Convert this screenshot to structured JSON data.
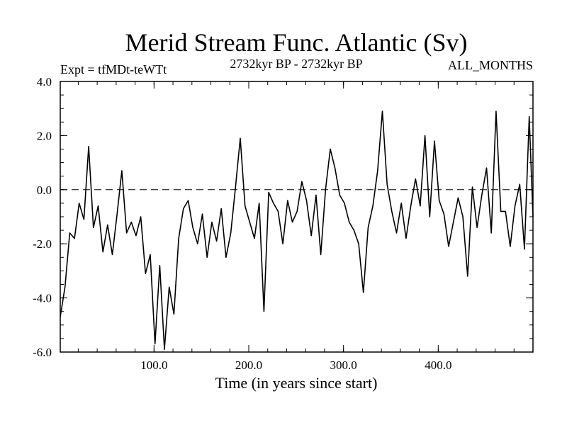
{
  "chart_data": {
    "type": "line",
    "title": "Merid Stream Func. Atlantic (Sv)",
    "subtitle": "2732kyr BP - 2732kyr BP",
    "annotation_left": "Expt = tfMDt-teWTt",
    "annotation_right": "ALL_MONTHS",
    "xlabel": "Time (in years since start)",
    "ylabel": "",
    "xlim": [
      1,
      500
    ],
    "ylim": [
      -6.0,
      4.0
    ],
    "x_ticks": [
      100,
      200,
      300,
      400
    ],
    "x_tick_labels": [
      "100.0",
      "200.0",
      "300.0",
      "400.0"
    ],
    "y_ticks": [
      -6,
      -4,
      -2,
      0,
      2,
      4
    ],
    "y_tick_labels": [
      "-6.0",
      "-4.0",
      "-2.0",
      "0.0",
      "2.0",
      "4.0"
    ],
    "reference_line": 0.0,
    "grid": false,
    "series": [
      {
        "name": "Merid Stream Func. Atlantic",
        "x": [
          1,
          6,
          11,
          16,
          21,
          26,
          31,
          36,
          41,
          46,
          51,
          56,
          61,
          66,
          71,
          76,
          81,
          86,
          91,
          96,
          101,
          106,
          111,
          116,
          121,
          126,
          131,
          136,
          141,
          146,
          151,
          156,
          161,
          166,
          171,
          176,
          181,
          186,
          191,
          196,
          201,
          206,
          211,
          216,
          221,
          226,
          231,
          236,
          241,
          246,
          251,
          256,
          261,
          266,
          271,
          276,
          281,
          286,
          291,
          296,
          301,
          306,
          311,
          316,
          321,
          326,
          331,
          336,
          341,
          346,
          351,
          356,
          361,
          366,
          371,
          376,
          381,
          386,
          391,
          396,
          401,
          406,
          411,
          416,
          421,
          426,
          431,
          436,
          441,
          446,
          451,
          456,
          461,
          466,
          471,
          476,
          481,
          486,
          491,
          496,
          500
        ],
        "values": [
          -4.7,
          -3.6,
          -1.6,
          -1.8,
          -0.5,
          -1.1,
          1.6,
          -1.4,
          -0.6,
          -2.3,
          -1.3,
          -2.4,
          -0.9,
          0.7,
          -1.6,
          -1.2,
          -1.7,
          -1.0,
          -3.1,
          -2.4,
          -5.7,
          -2.8,
          -5.9,
          -3.6,
          -4.6,
          -1.8,
          -0.7,
          -0.4,
          -1.4,
          -2.0,
          -0.9,
          -2.5,
          -1.2,
          -1.9,
          -0.7,
          -2.5,
          -1.6,
          0.1,
          1.9,
          -0.6,
          -1.2,
          -1.8,
          -0.5,
          -4.5,
          -0.1,
          -0.5,
          -0.8,
          -2.0,
          -0.4,
          -1.2,
          -0.8,
          0.3,
          -0.4,
          -1.7,
          -0.2,
          -2.4,
          0.0,
          1.5,
          0.8,
          -0.2,
          -0.5,
          -1.2,
          -1.5,
          -2.0,
          -3.8,
          -1.4,
          -0.6,
          0.7,
          2.9,
          0.2,
          -0.8,
          -1.6,
          -0.5,
          -1.8,
          -0.6,
          0.4,
          -0.6,
          2.0,
          -1.0,
          1.8,
          -0.4,
          -0.9,
          -2.1,
          -1.2,
          -0.3,
          -1.0,
          -3.2,
          0.1,
          -1.4,
          -0.2,
          0.8,
          -1.6,
          2.9,
          -0.8,
          -0.8,
          -2.1,
          -0.6,
          0.2,
          -2.2,
          2.7,
          -1.0
        ]
      }
    ]
  }
}
